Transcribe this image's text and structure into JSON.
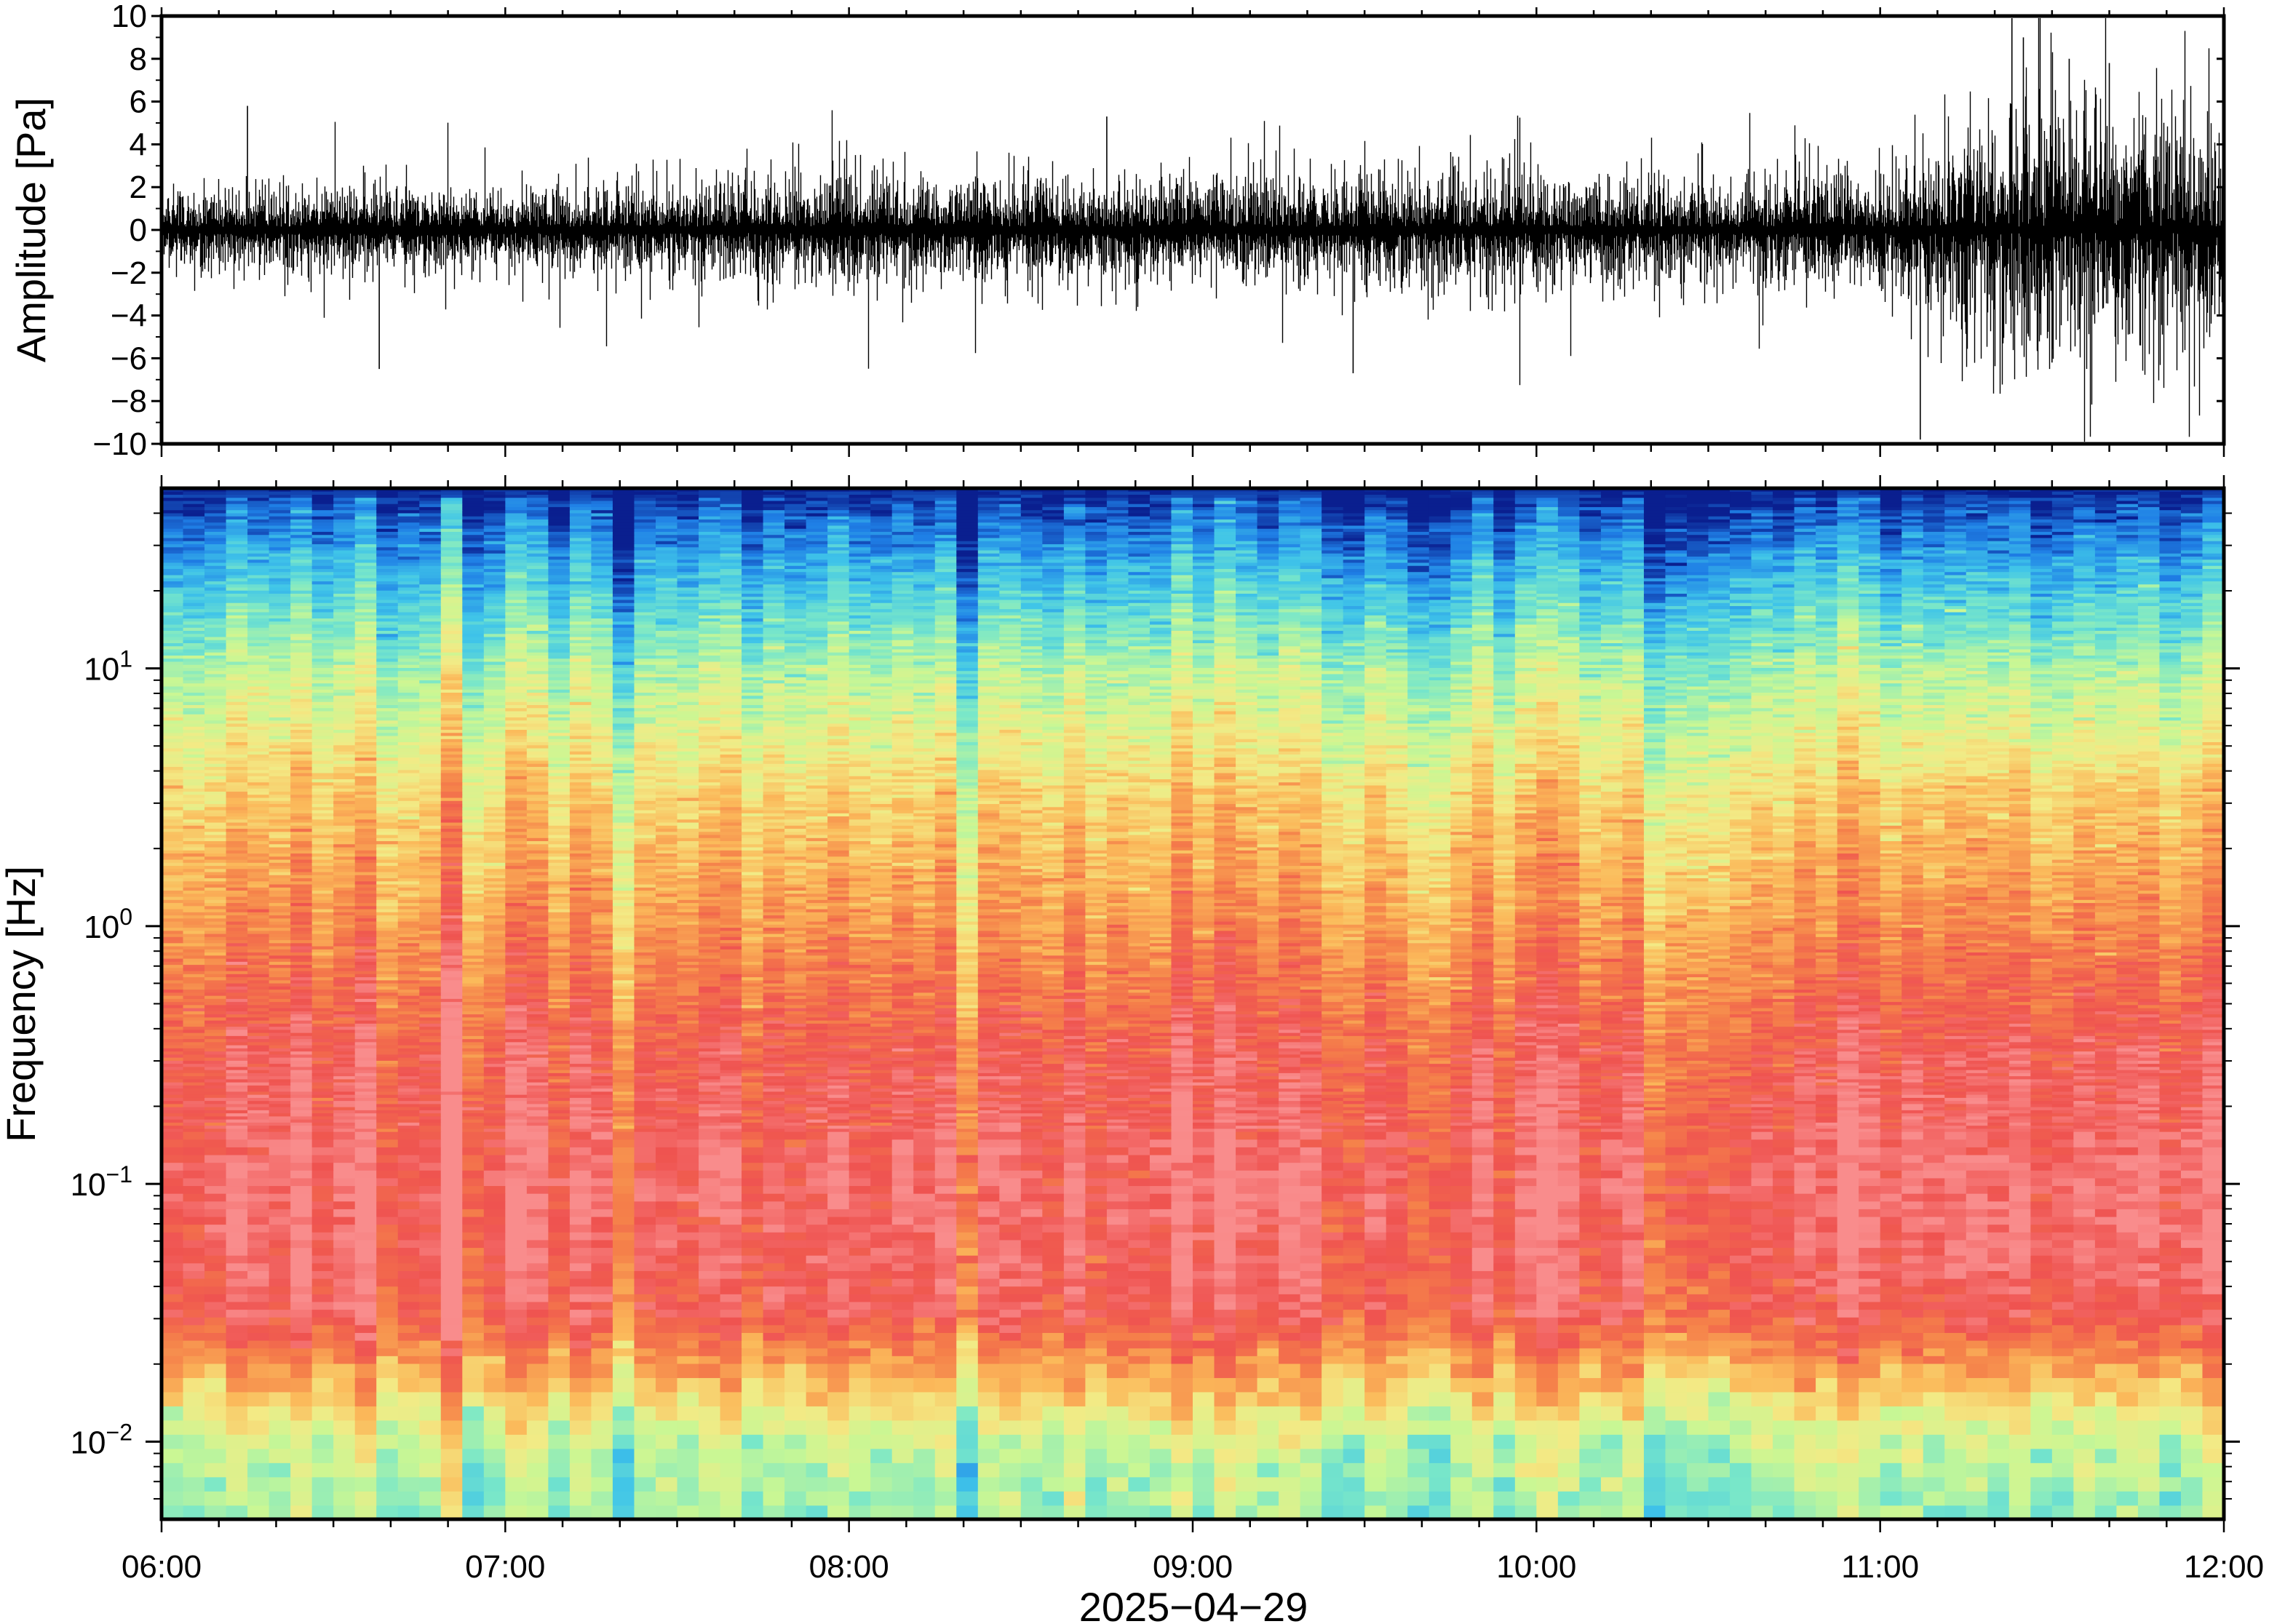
{
  "chart_data": [
    {
      "type": "line",
      "panel": "waveform",
      "ylabel": "Amplitude [Pa]",
      "ylim": [
        -10,
        10
      ],
      "yticks": [
        -10,
        -8,
        -6,
        -4,
        -2,
        0,
        2,
        4,
        6,
        8,
        10
      ],
      "ytick_labels": [
        "−10",
        "−8",
        "−6",
        "−4",
        "−2",
        "0",
        "2",
        "4",
        "6",
        "8",
        "10"
      ],
      "xlim": [
        "06:00",
        "12:00"
      ],
      "envelope": {
        "time_hours": [
          6.0,
          6.5,
          7.0,
          7.5,
          8.0,
          8.5,
          9.0,
          9.5,
          10.0,
          10.5,
          11.0,
          11.2,
          11.5,
          11.8,
          12.0
        ],
        "typical_amplitude": [
          0.9,
          1.3,
          0.9,
          1.4,
          1.5,
          1.5,
          1.3,
          1.6,
          1.5,
          1.4,
          1.6,
          2.8,
          3.6,
          3.5,
          3.4
        ]
      },
      "peaks": [
        {
          "time": "06:15",
          "value": 5.8
        },
        {
          "time": "06:38",
          "value": -6.5
        },
        {
          "time": "08:45",
          "value": 5.3
        },
        {
          "time": "09:28",
          "value": -6.7
        },
        {
          "time": "11:07",
          "value": -9.8
        },
        {
          "time": "11:23",
          "value": 9.9
        },
        {
          "time": "11:25",
          "value": 9.0
        },
        {
          "time": "11:30",
          "value": -6.2
        },
        {
          "time": "11:33",
          "value": 8.0
        },
        {
          "time": "11:40",
          "value": 7.8
        }
      ],
      "color": "#000000"
    },
    {
      "type": "heatmap",
      "panel": "spectrogram",
      "ylabel": "Frequency [Hz]",
      "xlabel": "2025−04−29",
      "yscale": "log",
      "ylim": [
        0.005,
        50
      ],
      "yticks": [
        {
          "value": 0.01,
          "base": "10",
          "exp": "−2"
        },
        {
          "value": 0.1,
          "base": "10",
          "exp": "−1"
        },
        {
          "value": 1,
          "base": "10",
          "exp": "0"
        },
        {
          "value": 10,
          "base": "10",
          "exp": "1"
        }
      ],
      "xticks": [
        "06:00",
        "07:00",
        "08:00",
        "09:00",
        "10:00",
        "11:00",
        "12:00"
      ],
      "xlim": [
        "06:00",
        "12:00"
      ],
      "colormap": [
        "#0a1f8f",
        "#1f7fe6",
        "#3fc4e9",
        "#79e7c9",
        "#c9f794",
        "#f3ea85",
        "#fbb95a",
        "#f5814a",
        "#ef5350",
        "#f98c8c"
      ],
      "band_level_vs_log10_frequency": {
        "log10_freq": [
          -2.3,
          -2.0,
          -1.7,
          -1.5,
          -1.0,
          -0.5,
          0.0,
          0.5,
          1.0,
          1.4,
          1.62,
          1.7
        ],
        "level": [
          3.4,
          4.0,
          6.4,
          8.0,
          8.4,
          7.9,
          6.6,
          5.4,
          3.7,
          1.7,
          0.5,
          0.0
        ]
      }
    }
  ]
}
